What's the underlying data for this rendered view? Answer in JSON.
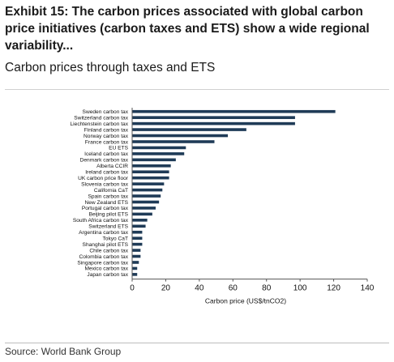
{
  "header": {
    "title": "Exhibit 15: The carbon prices associated with global carbon price initiatives (carbon taxes and ETS) show a wide regional variability...",
    "subtitle": "Carbon prices through taxes and ETS"
  },
  "footer": {
    "source": "Source: World Bank Group"
  },
  "colors": {
    "bar": "#1f3b57",
    "axis": "#555555"
  },
  "chart_data": {
    "type": "bar",
    "orientation": "horizontal",
    "categories": [
      "Sweden carbon tax",
      "Switzerland carbon tax",
      "Liechtenstein carbon tax",
      "Finland carbon tax",
      "Norway carbon tax",
      "France carbon tax",
      "EU ETS",
      "Iceland carbon tax",
      "Denmark carbon tax",
      "Alberta CCIR",
      "Ireland carbon tax",
      "UK carbon price floor",
      "Slovenia carbon tax",
      "California CaT",
      "Spain carbon tax",
      "New Zealand ETS",
      "Portugal carbon tax",
      "Beijing pilot ETS",
      "South Africa carbon tax",
      "Switzerland ETS",
      "Argentina carbon tax",
      "Tokyo CaT",
      "Shanghai pilot ETS",
      "Chile carbon tax",
      "Colombia carbon tax",
      "Singapore carbon tax",
      "Mexico carbon tax",
      "Japan carbon tax"
    ],
    "values": [
      121,
      97,
      97,
      68,
      57,
      49,
      32,
      31,
      26,
      23,
      22,
      22,
      19,
      18,
      17,
      16,
      14,
      12,
      9,
      8,
      6,
      6,
      6,
      5,
      5,
      4,
      3,
      3
    ],
    "xlabel": "Carbon price (US$/tnCO2)",
    "xlim": [
      0,
      140
    ],
    "xticks": [
      "0",
      "20",
      "40",
      "60",
      "80",
      "100",
      "120",
      "140"
    ],
    "grid": false,
    "legend": "none"
  }
}
